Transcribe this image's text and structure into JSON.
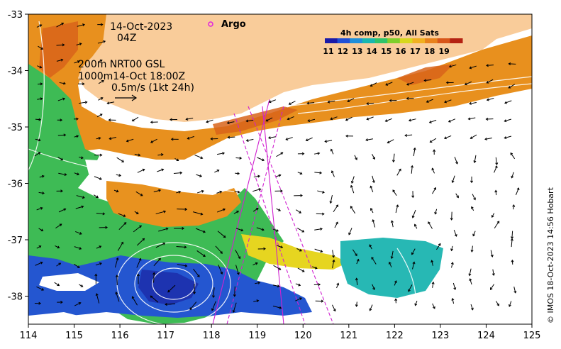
{
  "map": {
    "date_line": "14-Oct-2023",
    "time_line": "04Z",
    "contour_label": "200m  NRT00 GSL",
    "contour_label_2": "1000m14-Oct 18:00Z",
    "vector_scale_label": "0.5m/s (1kt 24h)",
    "argo_label": "Argo",
    "credit": "© IMOS 18-Oct-2023 14:56 Hobart",
    "colorbar": {
      "title": "4h comp, p50, All Sats",
      "ticks": [
        "11",
        "12",
        "13",
        "14",
        "15",
        "16",
        "17",
        "18",
        "19"
      ],
      "colors": [
        "#1a1aa8",
        "#1f4fd6",
        "#1f8fd9",
        "#19b7b0",
        "#2fc36a",
        "#7fcf2c",
        "#d8d81e",
        "#f0b020",
        "#e8821c",
        "#d8561a",
        "#b42212"
      ]
    },
    "x_axis": {
      "ticks": [
        "114",
        "115",
        "116",
        "117",
        "118",
        "119",
        "120",
        "121",
        "122",
        "123",
        "124",
        "125"
      ]
    },
    "y_axis": {
      "ticks": [
        "-33",
        "-34",
        "-35",
        "-36",
        "-37",
        "-38"
      ]
    },
    "land_color": "#f9cc9a"
  }
}
